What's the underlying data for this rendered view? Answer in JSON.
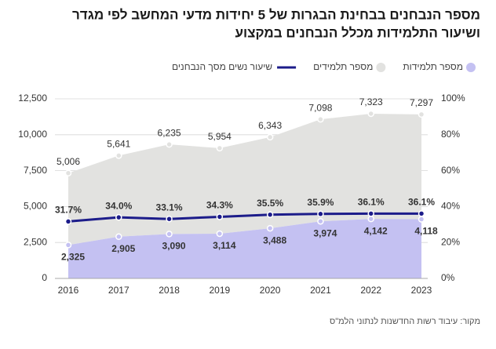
{
  "chart_data": {
    "type": "area",
    "title": "מספר הנבחנים בבחינת הבגרות של 5 יחידות מדעי המחשב לפי מגדר",
    "subtitle": "ושיעור התלמידות מכלל הנבחנים במקצוע",
    "source": "מקור: עיבוד רשות החדשנות לנתוני הלמ\"ס",
    "categories": [
      "2016",
      "2017",
      "2018",
      "2019",
      "2020",
      "2021",
      "2022",
      "2023"
    ],
    "stacked": true,
    "series": [
      {
        "name": "מספר תלמידות",
        "color": "#c4c1f2",
        "values": [
          2325,
          2905,
          3090,
          3114,
          3488,
          3974,
          4142,
          4118
        ],
        "value_labels": [
          "2,325",
          "2,905",
          "3,090",
          "3,114",
          "3,488",
          "3,974",
          "4,142",
          "4,118"
        ]
      },
      {
        "name": "מספר תלמידים",
        "color": "#e2e2e0",
        "values": [
          5006,
          5641,
          6235,
          5954,
          6343,
          7098,
          7323,
          7297
        ],
        "value_labels": [
          "5,006",
          "5,641",
          "6,235",
          "5,954",
          "6,343",
          "7,098",
          "7,323",
          "7,297"
        ]
      },
      {
        "name": "שיעור נשים מסך הנבחנים",
        "color": "#1c1c8a",
        "axis": "y2",
        "values": [
          31.7,
          34.0,
          33.1,
          34.3,
          35.5,
          35.9,
          36.1,
          36.1
        ],
        "value_labels": [
          "31.7%",
          "34.0%",
          "33.1%",
          "34.3%",
          "35.5%",
          "35.9%",
          "36.1%",
          "36.1%"
        ]
      }
    ],
    "ylim": [
      0,
      12500
    ],
    "yticks": [
      0,
      {
        "value": 2500,
        "label": "2,500"
      },
      {
        "value": 5000,
        "label": "5,000"
      },
      {
        "value": 7500,
        "label": "7,500"
      },
      {
        "value": 10000,
        "label": "10,000"
      },
      {
        "value": 12500,
        "label": "12,500"
      }
    ],
    "y2lim": [
      0,
      100
    ],
    "y2ticks": [
      {
        "value": 0,
        "label": "0%"
      },
      {
        "value": 20,
        "label": "20%"
      },
      {
        "value": 40,
        "label": "40%"
      },
      {
        "value": 60,
        "label": "60%"
      },
      {
        "value": 80,
        "label": "80%"
      },
      {
        "value": 100,
        "label": "100%"
      }
    ],
    "grid": true
  }
}
